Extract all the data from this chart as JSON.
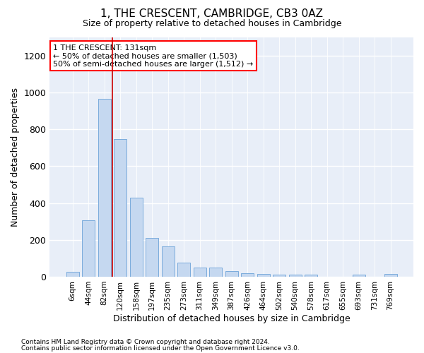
{
  "title": "1, THE CRESCENT, CAMBRIDGE, CB3 0AZ",
  "subtitle": "Size of property relative to detached houses in Cambridge",
  "xlabel": "Distribution of detached houses by size in Cambridge",
  "ylabel": "Number of detached properties",
  "bar_color": "#c5d8f0",
  "bar_edge_color": "#7aabdc",
  "categories": [
    "6sqm",
    "44sqm",
    "82sqm",
    "120sqm",
    "158sqm",
    "197sqm",
    "235sqm",
    "273sqm",
    "311sqm",
    "349sqm",
    "387sqm",
    "426sqm",
    "464sqm",
    "502sqm",
    "540sqm",
    "578sqm",
    "617sqm",
    "655sqm",
    "693sqm",
    "731sqm",
    "769sqm"
  ],
  "values": [
    25,
    305,
    965,
    745,
    430,
    210,
    165,
    75,
    50,
    50,
    30,
    20,
    15,
    10,
    10,
    10,
    0,
    0,
    10,
    0,
    15
  ],
  "ylim": [
    0,
    1300
  ],
  "yticks": [
    0,
    200,
    400,
    600,
    800,
    1000,
    1200
  ],
  "vline_x": 2.5,
  "vline_color": "#cc0000",
  "annotation_title": "1 THE CRESCENT: 131sqm",
  "annotation_line1": "← 50% of detached houses are smaller (1,503)",
  "annotation_line2": "50% of semi-detached houses are larger (1,512) →",
  "footer1": "Contains HM Land Registry data © Crown copyright and database right 2024.",
  "footer2": "Contains public sector information licensed under the Open Government Licence v3.0.",
  "background_color": "#ffffff",
  "plot_bg_color": "#e8eef8"
}
